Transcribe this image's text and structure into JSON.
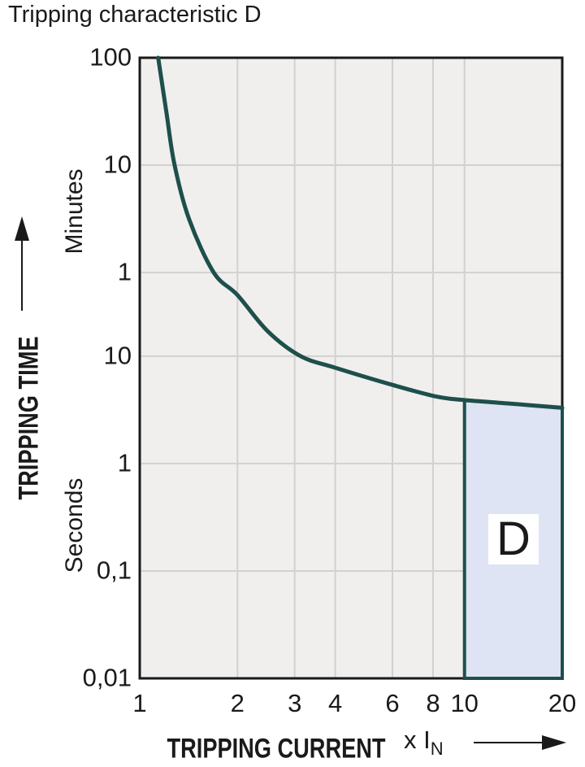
{
  "title": "Tripping characteristic D",
  "colors": {
    "curve": "#1E4F4B",
    "region_fill": "#DEE4F3",
    "region_label_bg": "#FFFFFF",
    "plot_bg": "#F0EFEE",
    "gridline": "#D2D1CF",
    "axis": "#1A1A1A",
    "text": "#1A1A1A"
  },
  "chart_data": {
    "type": "line",
    "title": "Tripping characteristic D",
    "xlabel": "TRIPPING CURRENT",
    "x_unit": {
      "prefix": "x I",
      "subscript": "N"
    },
    "ylabel": "TRIPPING TIME",
    "x_axis": {
      "scale": "log",
      "min": 1,
      "max": 20,
      "ticks": [
        1,
        2,
        3,
        4,
        6,
        8,
        10,
        20
      ]
    },
    "y_axis": {
      "scale": "log",
      "unit": "seconds",
      "min": 0.01,
      "max": 6000,
      "ticks": [
        {
          "label": "100",
          "seconds": 6000
        },
        {
          "label": "10",
          "seconds": 600
        },
        {
          "label": "1",
          "seconds": 60
        },
        {
          "label": "10",
          "seconds": 10
        },
        {
          "label": "1",
          "seconds": 1
        },
        {
          "label": "0,1",
          "seconds": 0.1
        },
        {
          "label": "0,01",
          "seconds": 0.01
        }
      ],
      "unit_labels": [
        {
          "text": "Minutes",
          "at_seconds": 220
        },
        {
          "text": "Seconds",
          "at_seconds": 0.26
        }
      ]
    },
    "series": [
      {
        "name": "D tripping characteristic curve",
        "points_multiple_vs_seconds": [
          [
            1.14,
            6000
          ],
          [
            1.21,
            1800
          ],
          [
            1.28,
            600
          ],
          [
            1.42,
            187
          ],
          [
            1.69,
            60
          ],
          [
            2.0,
            37
          ],
          [
            2.48,
            17
          ],
          [
            3.13,
            10
          ],
          [
            4.0,
            7.8
          ],
          [
            6.0,
            5.4
          ],
          [
            8.2,
            4.2
          ],
          [
            10.0,
            3.9
          ],
          [
            14.0,
            3.6
          ],
          [
            20.0,
            3.3
          ]
        ]
      }
    ],
    "region": {
      "label": "D",
      "x_range": [
        10,
        20
      ],
      "y_from_seconds": 0.01,
      "y_to": "curve"
    }
  }
}
